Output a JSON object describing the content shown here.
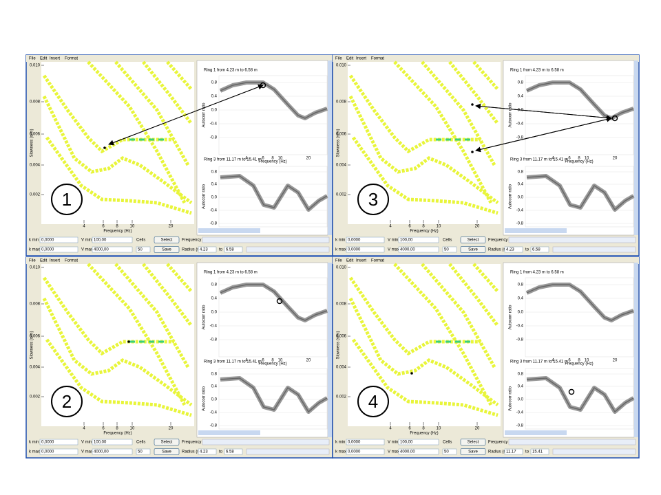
{
  "menu": [
    "File",
    "Edit",
    "Insert",
    "Format"
  ],
  "left_plot": {
    "y_label": "Slowness (s/m)",
    "x_label": "Frequency (Hz)",
    "yticks": [
      "0.010",
      "0.008",
      "0.006",
      "0.004",
      "0.002"
    ],
    "xticks": [
      "4",
      "6",
      "8",
      "10",
      "20"
    ]
  },
  "right_plots": {
    "y_label": "Autocorr ratio",
    "x_label": "Frequency (Hz)",
    "yticks": [
      "0.8",
      "0.4",
      "0.0",
      "-0.4",
      "-0.8"
    ],
    "xticks": [
      "4",
      "6",
      "8",
      "10",
      "20"
    ]
  },
  "controls": {
    "k_min_label": "k min",
    "k_min": "0,0000",
    "v_min_label": "V min",
    "v_min": "100,00",
    "cells_label": "Cells",
    "select": "Select",
    "frequency_label": "Frequency",
    "k_max_label": "k max",
    "k_max": "0,0000",
    "v_max_label": "V max",
    "v_max": "4000,00",
    "cells": "50",
    "save": "Save",
    "radius_label": "Radius (m)",
    "to": "to"
  },
  "panels": [
    {
      "number": "1",
      "ring_top": "Ring 1 from 4.23 m to 6.58 m",
      "ring_bottom": "Ring 3 from 11.17 m to 15.41 m",
      "radius_from": "4.23",
      "radius_to": "6.58"
    },
    {
      "number": "3",
      "ring_top": "Ring 1 from 4.23 m to 6.58 m",
      "ring_bottom": "Ring 3 from 11.17 m to 15.41 m",
      "radius_from": "4.23",
      "radius_to": "6.58"
    },
    {
      "number": "2",
      "ring_top": "Ring 1 from 4.23 m to 6.58 m",
      "ring_bottom": "Ring 3 from 11.17 m to 15.41 m",
      "radius_from": "4.23",
      "radius_to": "6.58"
    },
    {
      "number": "4",
      "ring_top": "Ring 1 from 4.23 m to 6.58 m",
      "ring_bottom": "Ring 3 from 11.17 m to 15.41 m",
      "radius_from": "11.17",
      "radius_to": "15.41"
    }
  ]
}
